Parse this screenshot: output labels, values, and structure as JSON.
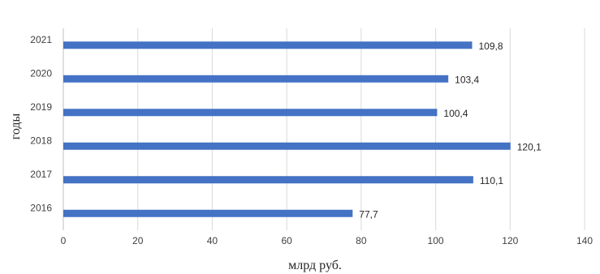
{
  "chart_data": {
    "type": "bar",
    "orientation": "horizontal",
    "categories": [
      "2021",
      "2020",
      "2019",
      "2018",
      "2017",
      "2016"
    ],
    "values": [
      109.8,
      103.4,
      100.4,
      120.1,
      110.1,
      77.7
    ],
    "data_labels": [
      "109,8",
      "103,4",
      "100,4",
      "120,1",
      "110,1",
      "77,7"
    ],
    "xlabel": "млрд руб.",
    "ylabel": "годы",
    "xlim": [
      0,
      140
    ],
    "x_ticks": [
      "0",
      "20",
      "40",
      "60",
      "80",
      "100",
      "120",
      "140"
    ],
    "grid": "vertical",
    "legend": "none",
    "bar_color": "#4472C4"
  }
}
